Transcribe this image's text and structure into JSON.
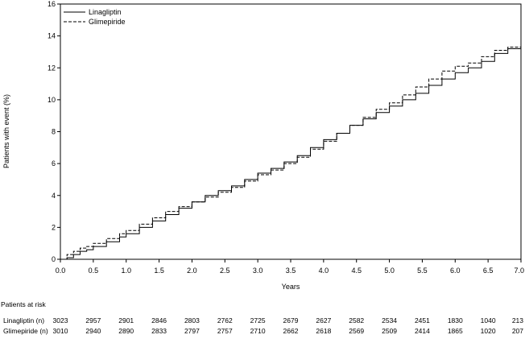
{
  "chart_data": {
    "type": "line",
    "title": "",
    "xlabel": "Years",
    "ylabel": "Patients with event (%)",
    "xlim": [
      0,
      7
    ],
    "ylim": [
      0,
      16
    ],
    "x_ticks": [
      "0.0",
      "0.5",
      "1.0",
      "1.5",
      "2.0",
      "2.5",
      "3.0",
      "3.5",
      "4.0",
      "4.5",
      "5.0",
      "5.5",
      "6.0",
      "6.5",
      "7.0"
    ],
    "y_ticks": [
      "0",
      "2",
      "4",
      "6",
      "8",
      "10",
      "12",
      "14",
      "16"
    ],
    "grid": false,
    "legend_position": "top-left",
    "series": [
      {
        "name": "Linagliptin",
        "style": "solid",
        "x": [
          0,
          0.1,
          0.2,
          0.3,
          0.4,
          0.5,
          0.7,
          0.9,
          1.0,
          1.2,
          1.4,
          1.6,
          1.8,
          2.0,
          2.2,
          2.4,
          2.6,
          2.8,
          3.0,
          3.2,
          3.4,
          3.6,
          3.8,
          4.0,
          4.2,
          4.4,
          4.6,
          4.8,
          5.0,
          5.2,
          5.4,
          5.6,
          5.8,
          6.0,
          6.2,
          6.4,
          6.6,
          6.8,
          7.0
        ],
        "y": [
          0,
          0.1,
          0.3,
          0.5,
          0.6,
          0.8,
          1.1,
          1.4,
          1.6,
          2.0,
          2.4,
          2.8,
          3.2,
          3.6,
          4.0,
          4.3,
          4.6,
          5.0,
          5.4,
          5.7,
          6.1,
          6.5,
          7.0,
          7.5,
          7.9,
          8.4,
          8.8,
          9.2,
          9.6,
          10.0,
          10.4,
          10.9,
          11.3,
          11.7,
          12.0,
          12.4,
          12.9,
          13.2,
          13.2
        ]
      },
      {
        "name": "Glimepiride",
        "style": "dashed",
        "x": [
          0,
          0.1,
          0.2,
          0.3,
          0.4,
          0.5,
          0.7,
          0.9,
          1.0,
          1.2,
          1.4,
          1.6,
          1.8,
          2.0,
          2.2,
          2.4,
          2.6,
          2.8,
          3.0,
          3.2,
          3.4,
          3.6,
          3.8,
          4.0,
          4.2,
          4.4,
          4.6,
          4.8,
          5.0,
          5.2,
          5.4,
          5.6,
          5.8,
          6.0,
          6.2,
          6.4,
          6.6,
          6.8,
          7.0
        ],
        "y": [
          0,
          0.3,
          0.5,
          0.7,
          0.8,
          1.0,
          1.3,
          1.6,
          1.8,
          2.2,
          2.6,
          3.0,
          3.3,
          3.6,
          3.9,
          4.2,
          4.5,
          4.9,
          5.3,
          5.6,
          6.0,
          6.4,
          6.9,
          7.4,
          7.9,
          8.4,
          8.9,
          9.4,
          9.8,
          10.3,
          10.8,
          11.3,
          11.8,
          12.1,
          12.3,
          12.7,
          13.1,
          13.3,
          13.3
        ]
      }
    ],
    "risk_table": {
      "title": "Patients at risk",
      "rows": [
        {
          "label": "Linagliptin (n)",
          "values": [
            "3023",
            "2957",
            "2901",
            "2846",
            "2803",
            "2762",
            "2725",
            "2679",
            "2627",
            "2582",
            "2534",
            "2451",
            "1830",
            "1040",
            "213"
          ]
        },
        {
          "label": "Glimepiride (n)",
          "values": [
            "3010",
            "2940",
            "2890",
            "2833",
            "2797",
            "2757",
            "2710",
            "2662",
            "2618",
            "2569",
            "2509",
            "2414",
            "1865",
            "1020",
            "207"
          ]
        }
      ]
    }
  }
}
